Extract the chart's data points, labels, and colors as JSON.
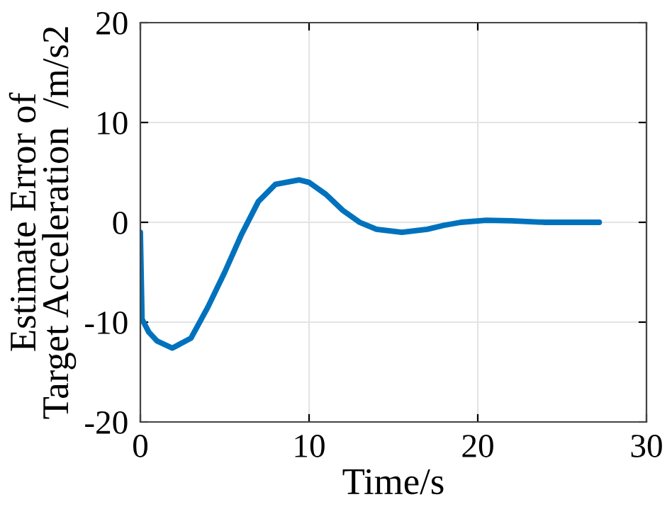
{
  "chart_data": {
    "type": "line",
    "xlabel": "Time/s",
    "ylabel": "Estimate Error of\nTarget Acceleration  /m/s2",
    "xlim": [
      0,
      30
    ],
    "ylim": [
      -20,
      20
    ],
    "xticks": [
      0,
      10,
      20,
      30
    ],
    "yticks": [
      -20,
      -10,
      0,
      10,
      20
    ],
    "grid": true,
    "series": [
      {
        "color": "#0072bd",
        "x": [
          0,
          0.1,
          0.5,
          1,
          1.9,
          3,
          4,
          5,
          6,
          7,
          8,
          9.4,
          10,
          11,
          12,
          13,
          14,
          15.5,
          17,
          18,
          19,
          20.5,
          22,
          24,
          27.2
        ],
        "values": [
          -1.0,
          -9.7,
          -11.0,
          -11.9,
          -12.6,
          -11.6,
          -8.5,
          -5.0,
          -1.2,
          2.1,
          3.8,
          4.25,
          4.0,
          2.8,
          1.2,
          0.0,
          -0.7,
          -1.0,
          -0.7,
          -0.3,
          0.0,
          0.2,
          0.15,
          0.0,
          0.0
        ]
      }
    ]
  }
}
